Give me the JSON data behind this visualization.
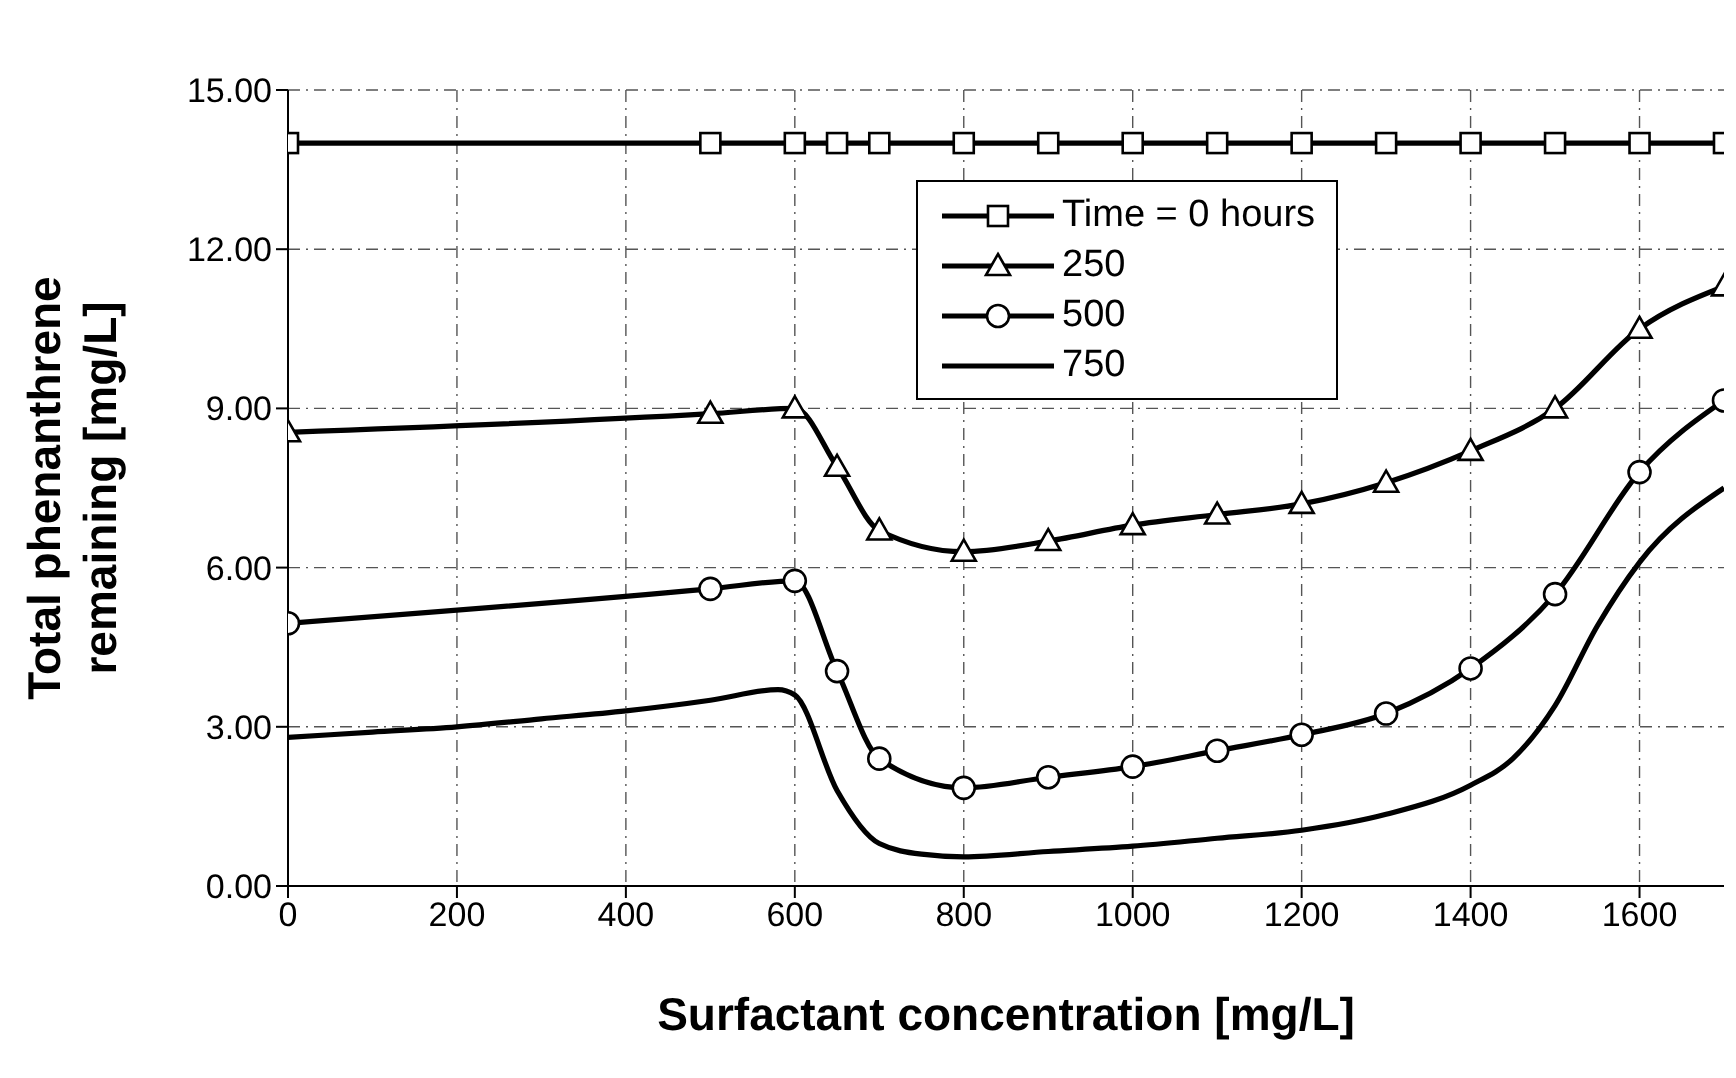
{
  "chart_data": {
    "type": "line",
    "xlabel": "Surfactant concentration [mg/L]",
    "ylabel": "Total phenanthrene\nremaining [mg/L]",
    "xlim": [
      0,
      1700
    ],
    "xticks": [
      0,
      200,
      400,
      600,
      800,
      1000,
      1200,
      1400,
      1600
    ],
    "ylim": [
      0,
      15
    ],
    "yticks": [
      {
        "value": 0,
        "label": "0.00"
      },
      {
        "value": 3,
        "label": "3.00"
      },
      {
        "value": 6,
        "label": "6.00"
      },
      {
        "value": 9,
        "label": "9.00"
      },
      {
        "value": 12,
        "label": "12.00"
      },
      {
        "value": 15,
        "label": "15.00"
      }
    ],
    "grid": true,
    "legend": "top",
    "line_style": "solid",
    "series": [
      {
        "name": "Time = 0 hours",
        "color": "#000000",
        "marker": "square",
        "x": [
          0,
          500,
          600,
          650,
          700,
          800,
          900,
          1000,
          1100,
          1200,
          1300,
          1400,
          1500,
          1600,
          1700
        ],
        "values": [
          14,
          14,
          14,
          14,
          14,
          14,
          14,
          14,
          14,
          14,
          14,
          14,
          14,
          14,
          14
        ]
      },
      {
        "name": "250",
        "color": "#000000",
        "marker": "triangle",
        "x": [
          0,
          500,
          600,
          650,
          700,
          800,
          900,
          1000,
          1100,
          1200,
          1300,
          1400,
          1500,
          1600,
          1700
        ],
        "values": [
          8.55,
          8.9,
          9.0,
          7.9,
          6.7,
          6.3,
          6.5,
          6.8,
          7.0,
          7.2,
          7.6,
          8.2,
          9.0,
          10.5,
          11.3
        ]
      },
      {
        "name": "500",
        "color": "#000000",
        "marker": "circle",
        "x": [
          0,
          500,
          600,
          650,
          700,
          800,
          900,
          1000,
          1100,
          1200,
          1300,
          1400,
          1500,
          1600,
          1700
        ],
        "values": [
          4.95,
          5.6,
          5.75,
          4.05,
          2.4,
          1.85,
          2.05,
          2.25,
          2.55,
          2.85,
          3.25,
          4.1,
          5.5,
          7.8,
          9.15
        ]
      },
      {
        "name": "750",
        "color": "#000000",
        "marker": "none",
        "x": [
          0,
          100,
          200,
          300,
          400,
          500,
          580,
          600,
          650,
          700,
          750,
          800,
          900,
          1000,
          1100,
          1200,
          1300,
          1400,
          1450,
          1500,
          1550,
          1600,
          1700
        ],
        "values": [
          2.8,
          2.9,
          3.0,
          3.15,
          3.3,
          3.5,
          3.7,
          3.6,
          1.8,
          0.8,
          0.6,
          0.55,
          0.65,
          0.75,
          0.9,
          1.05,
          1.35,
          1.9,
          2.4,
          3.4,
          4.9,
          6.1,
          7.5
        ]
      }
    ]
  }
}
